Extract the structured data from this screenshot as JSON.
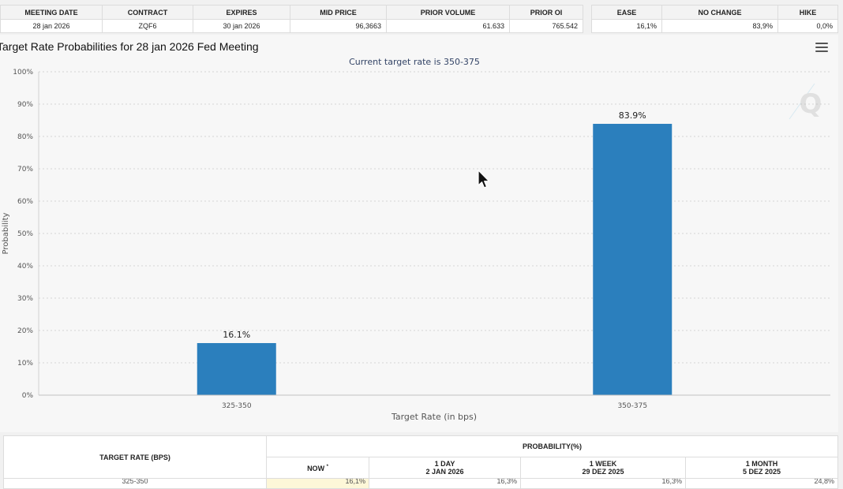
{
  "meeting_table": {
    "headers": [
      "MEETING DATE",
      "CONTRACT",
      "EXPIRES",
      "MID PRICE",
      "PRIOR VOLUME",
      "PRIOR OI"
    ],
    "row": [
      "28 jan 2026",
      "ZQF6",
      "30 jan 2026",
      "96,3663",
      "61.633",
      "765.542"
    ]
  },
  "outcome_table": {
    "headers": [
      "EASE",
      "NO CHANGE",
      "HIKE"
    ],
    "row": [
      "16,1%",
      "83,9%",
      "0,0%"
    ]
  },
  "chart_title": "Target Rate Probabilities for 28 jan 2026 Fed Meeting",
  "icons": {
    "menu": "hamburger-menu-icon",
    "watermark": "q-logo-watermark",
    "cursor": "mouse-pointer-icon"
  },
  "chart_data": {
    "type": "bar",
    "subtitle": "Current target rate is 350-375",
    "categories": [
      "325-350",
      "350-375"
    ],
    "values": [
      16.1,
      83.9
    ],
    "data_labels": [
      "16.1%",
      "83.9%"
    ],
    "xlabel": "Target Rate (in bps)",
    "ylabel": "Probability",
    "ylim": [
      0,
      100
    ],
    "yticks": [
      "0%",
      "10%",
      "20%",
      "30%",
      "40%",
      "50%",
      "60%",
      "70%",
      "80%",
      "90%",
      "100%"
    ],
    "grid": true,
    "bar_color": "#2b7fbd"
  },
  "probability_table": {
    "target_rate_header": "TARGET RATE (BPS)",
    "probability_header": "PROBABILITY(%)",
    "columns": [
      {
        "label": "NOW",
        "mark": "*",
        "date": ""
      },
      {
        "label": "1 DAY",
        "date": "2 JAN 2026"
      },
      {
        "label": "1 WEEK",
        "date": "29 DEZ 2025"
      },
      {
        "label": "1 MONTH",
        "date": "5 DEZ 2025"
      }
    ],
    "first_row": [
      "325-350",
      "16,1%",
      "16,3%",
      "16,3%",
      "24,8%"
    ]
  }
}
